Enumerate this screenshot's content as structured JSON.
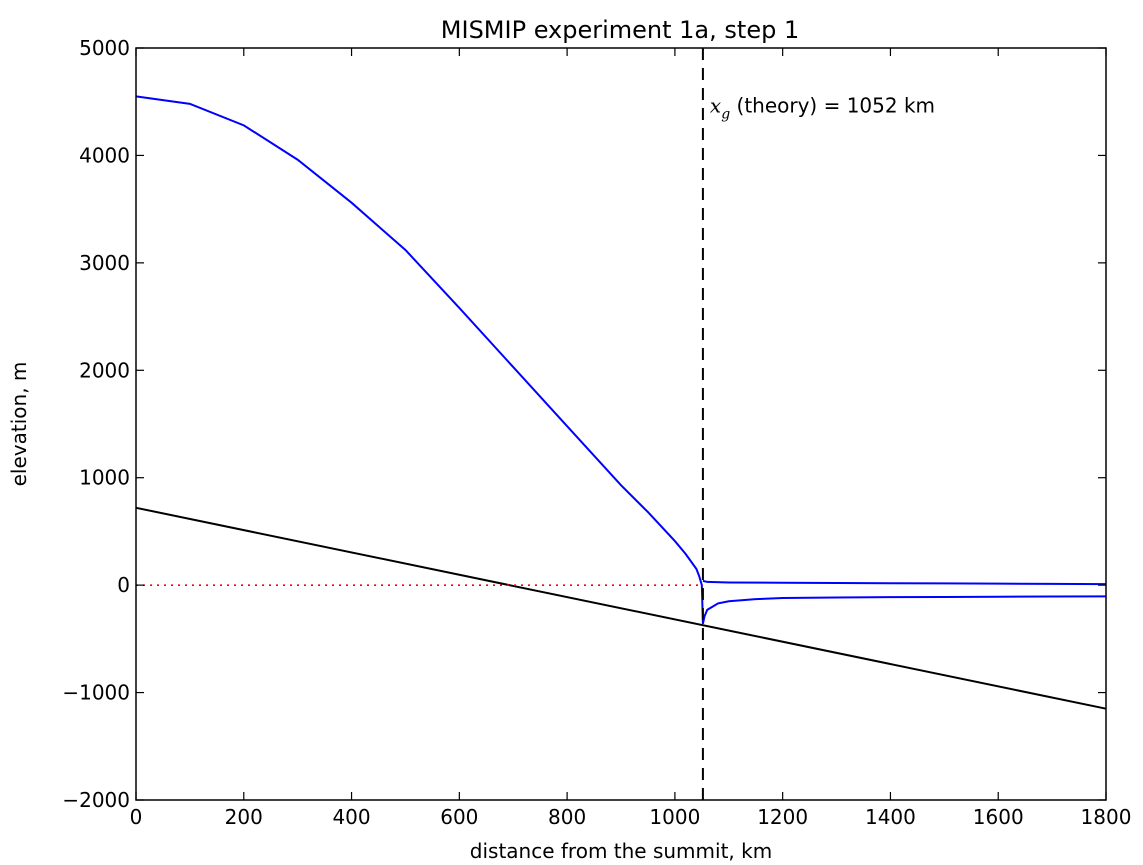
{
  "chart_data": {
    "type": "line",
    "title": "MISMIP experiment 1a, step 1",
    "xlabel": "distance from the summit, km",
    "ylabel": "elevation, m",
    "xlim": [
      0,
      1800
    ],
    "ylim": [
      -2000,
      5000
    ],
    "xticks": [
      0,
      200,
      400,
      600,
      800,
      1000,
      1200,
      1400,
      1600,
      1800
    ],
    "yticks": [
      -2000,
      -1000,
      0,
      1000,
      2000,
      3000,
      4000,
      5000
    ],
    "xtick_labels": [
      "0",
      "200",
      "400",
      "600",
      "800",
      "1000",
      "1200",
      "1400",
      "1600",
      "1800"
    ],
    "ytick_labels": [
      "−2000",
      "−1000",
      "0",
      "1000",
      "2000",
      "3000",
      "4000",
      "5000"
    ],
    "grid": false,
    "colors": {
      "ice": "#0000ff",
      "bed": "#000000",
      "sea_level": "#ff0000",
      "grounding_line": "#000000"
    },
    "series": [
      {
        "style": "solid",
        "color": "#0000ff",
        "x": [
          0,
          100,
          200,
          300,
          400,
          500,
          600,
          700,
          800,
          900,
          950,
          1000,
          1020,
          1040,
          1045,
          1050,
          1052
        ],
        "y": [
          4550,
          4480,
          4280,
          3960,
          3560,
          3120,
          2580,
          2030,
          1480,
          930,
          680,
          410,
          290,
          150,
          85,
          0,
          -360
        ]
      },
      {
        "style": "solid",
        "color": "#0000ff",
        "x": [
          1052,
          1060,
          1100,
          1200,
          1300,
          1400,
          1500,
          1600,
          1700,
          1800
        ],
        "y": [
          40,
          30,
          25,
          22,
          20,
          18,
          16,
          14,
          12,
          10
        ]
      },
      {
        "style": "solid",
        "color": "#0000ff",
        "x": [
          1052,
          1055,
          1060,
          1080,
          1100,
          1150,
          1200,
          1300,
          1400,
          1500,
          1600,
          1700,
          1800
        ],
        "y": [
          -360,
          -290,
          -230,
          -170,
          -150,
          -130,
          -120,
          -115,
          -112,
          -110,
          -108,
          -106,
          -105
        ]
      },
      {
        "style": "solid",
        "color": "#000000",
        "x": [
          0,
          1800
        ],
        "y": [
          720,
          -1150
        ]
      },
      {
        "style": "dotted",
        "color": "#ff0000",
        "x": [
          0,
          1052
        ],
        "y": [
          0,
          0
        ]
      },
      {
        "style": "dashed",
        "color": "#000000",
        "vertical_x": 1052
      }
    ],
    "annotation": {
      "math": "x",
      "math_sub": "g",
      "text": " (theory) = 1052 km",
      "x": 1065,
      "y": 4400
    }
  }
}
